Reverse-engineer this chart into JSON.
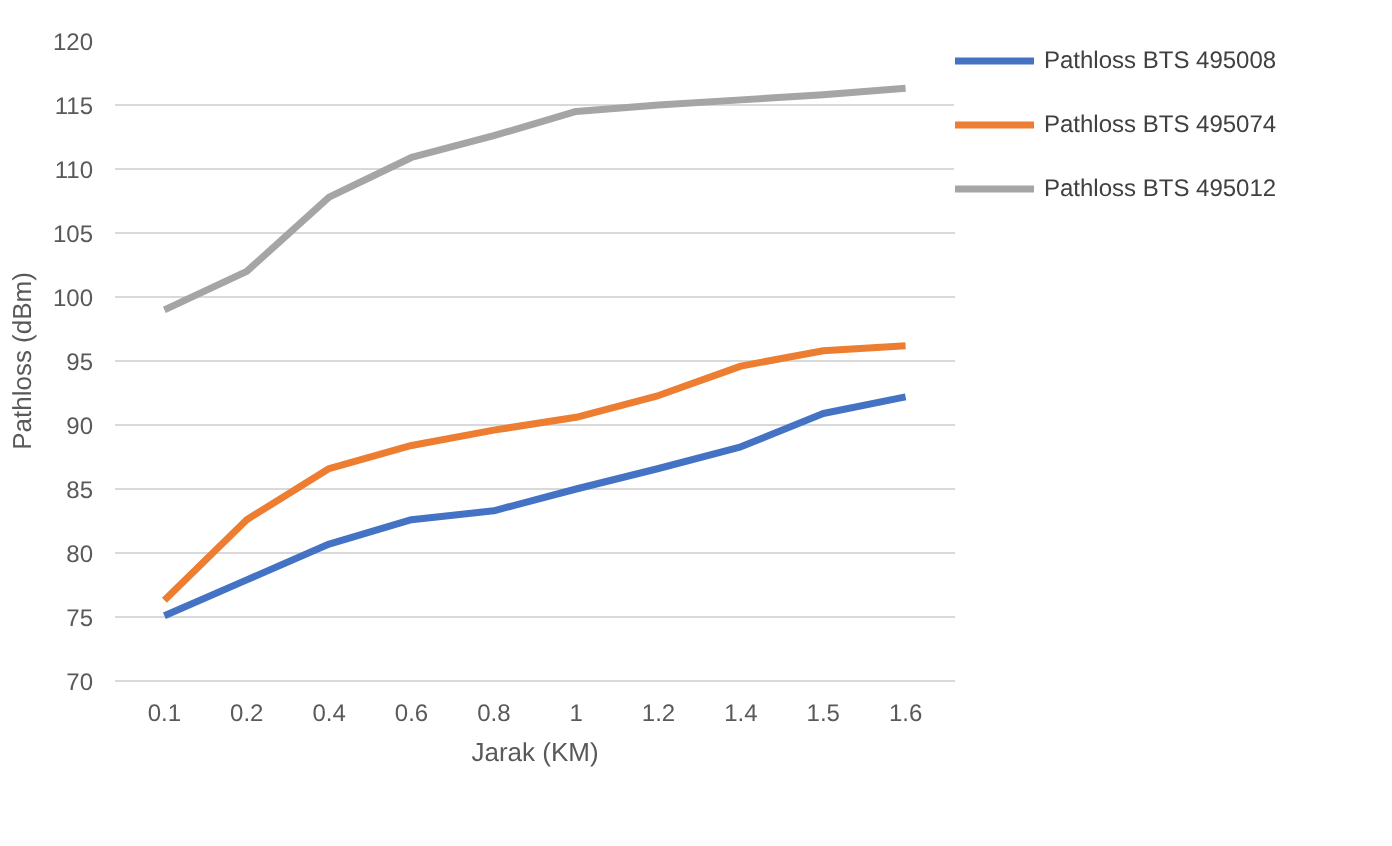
{
  "chart_data": {
    "type": "line",
    "xlabel": "Jarak (KM)",
    "ylabel": "Pathloss (dBm)",
    "categories": [
      "0.1",
      "0.2",
      "0.4",
      "0.6",
      "0.8",
      "1",
      "1.2",
      "1.4",
      "1.5",
      "1.6"
    ],
    "series": [
      {
        "name": "Pathloss BTS 495008",
        "color": "#4472c4",
        "values": [
          75.1,
          77.9,
          80.7,
          82.6,
          83.3,
          85.0,
          86.6,
          88.3,
          90.9,
          92.2
        ]
      },
      {
        "name": "Pathloss BTS 495074",
        "color": "#ed7d31",
        "values": [
          76.3,
          82.6,
          86.6,
          88.4,
          89.6,
          90.6,
          92.3,
          94.6,
          95.8,
          96.2
        ]
      },
      {
        "name": "Pathloss BTS 495012",
        "color": "#a5a5a5",
        "values": [
          99.0,
          102.0,
          107.8,
          110.9,
          112.6,
          114.5,
          115.0,
          115.4,
          115.8,
          116.3
        ]
      }
    ],
    "ylim": [
      70,
      120
    ],
    "yticks": [
      70,
      75,
      80,
      85,
      90,
      95,
      100,
      105,
      110,
      115,
      120
    ],
    "grid": "y",
    "legend": "right",
    "marker": "none",
    "line_style": "solid"
  }
}
